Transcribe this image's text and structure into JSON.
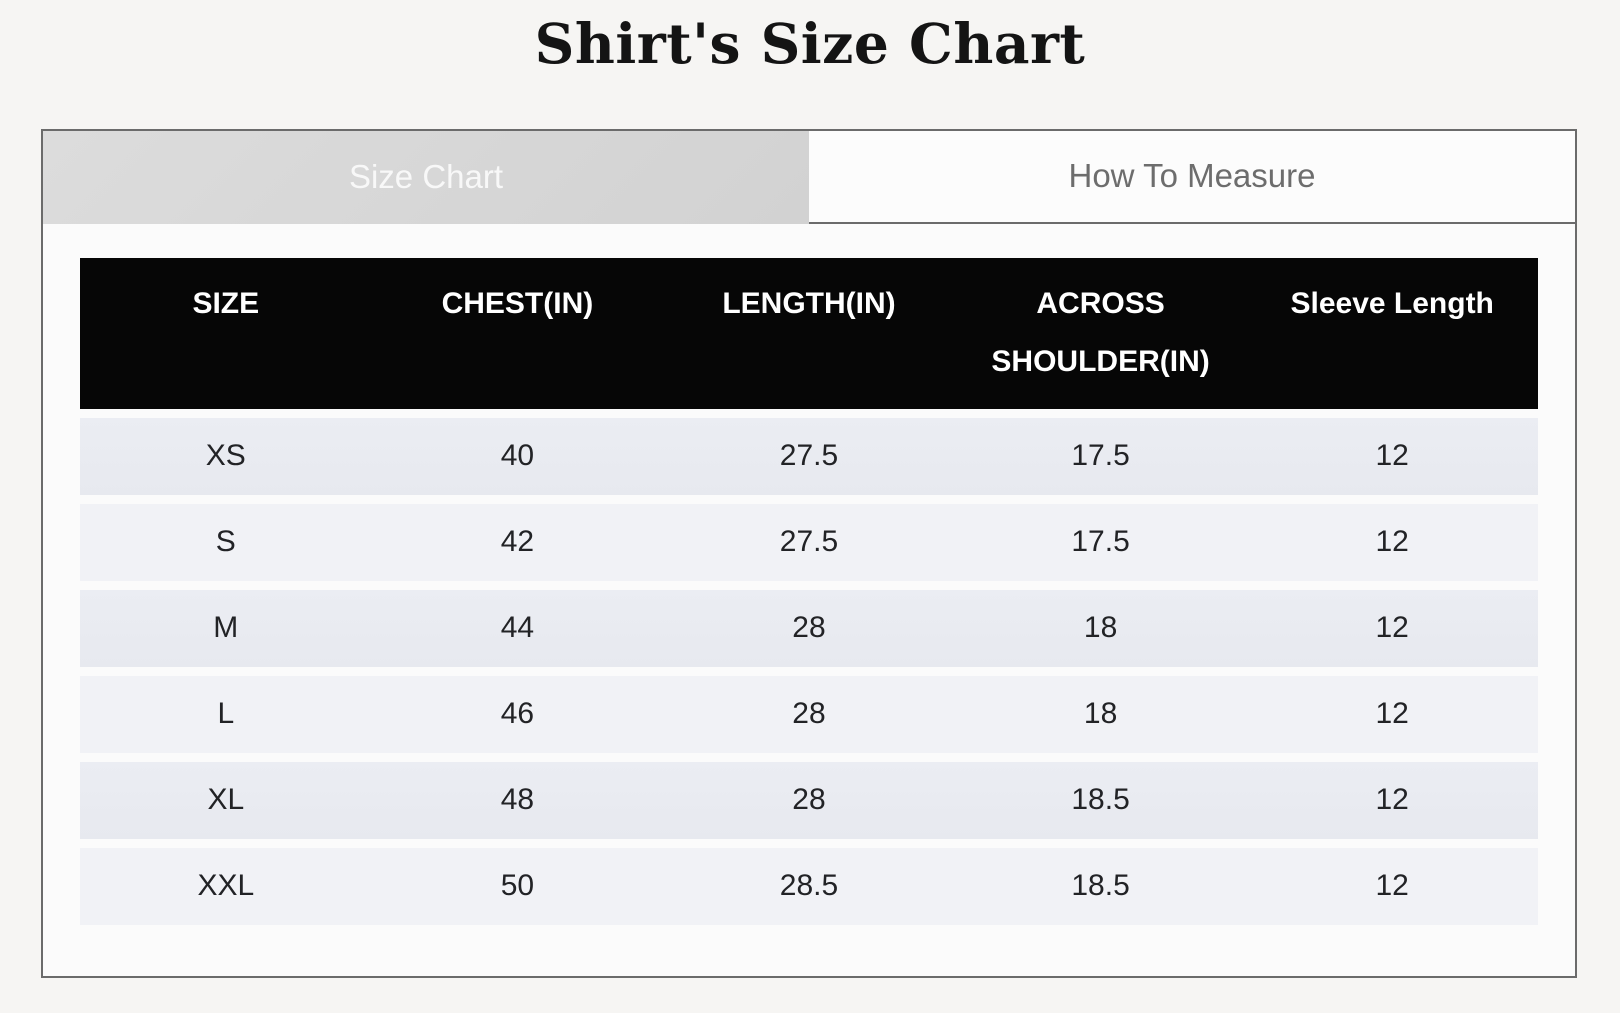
{
  "title": "Shirt's Size Chart",
  "tabs": [
    {
      "label": "Size Chart",
      "active": true
    },
    {
      "label": "How To Measure",
      "active": false
    }
  ],
  "table": {
    "columns": [
      "SIZE",
      "CHEST(IN)",
      "LENGTH(IN)",
      "ACROSS SHOULDER(IN)",
      "Sleeve Length"
    ],
    "rows": [
      [
        "XS",
        "40",
        "27.5",
        "17.5",
        "12"
      ],
      [
        "S",
        "42",
        "27.5",
        "17.5",
        "12"
      ],
      [
        "M",
        "44",
        "28",
        "18",
        "12"
      ],
      [
        "L",
        "46",
        "28",
        "18",
        "12"
      ],
      [
        "XL",
        "48",
        "28",
        "18.5",
        "12"
      ],
      [
        "XXL",
        "50",
        "28.5",
        "18.5",
        "12"
      ]
    ]
  },
  "colors": {
    "page_background": "#f6f5f3",
    "active_tab_background": "#d6d6d6",
    "active_tab_text": "#f8f8f8",
    "inactive_tab_text": "#6d6d6d",
    "widget_border": "#6b6b6b",
    "header_background": "#060606",
    "header_text": "#ffffff",
    "row_odd_background": "#e8eaf0",
    "row_even_background": "#f1f2f6"
  }
}
